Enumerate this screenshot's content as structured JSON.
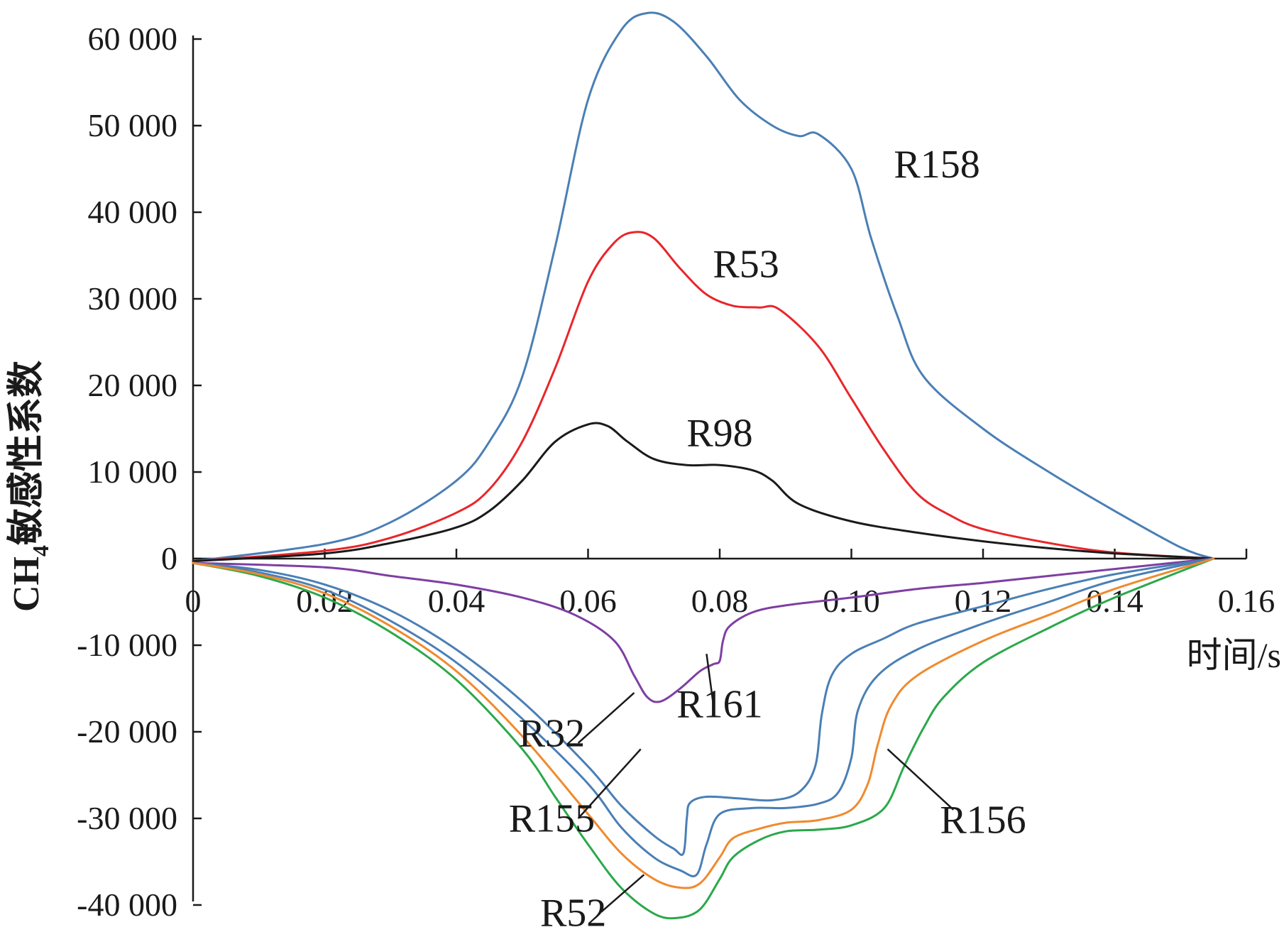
{
  "chart_data": {
    "type": "line",
    "title": "",
    "xlabel": "时间/s",
    "ylabel_main": "CH",
    "ylabel_sub": "4",
    "ylabel_rest": "敏感性系数",
    "xlim": [
      0,
      0.16
    ],
    "ylim": [
      -40000,
      60000
    ],
    "xticks": [
      {
        "v": 0,
        "label": "0"
      },
      {
        "v": 0.02,
        "label": "0.02"
      },
      {
        "v": 0.04,
        "label": "0.04"
      },
      {
        "v": 0.06,
        "label": "0.06"
      },
      {
        "v": 0.08,
        "label": "0.08"
      },
      {
        "v": 0.1,
        "label": "0.10"
      },
      {
        "v": 0.12,
        "label": "0.12"
      },
      {
        "v": 0.14,
        "label": "0.14"
      },
      {
        "v": 0.16,
        "label": "0.16"
      }
    ],
    "yticks": [
      {
        "v": 60000,
        "label": "60 000"
      },
      {
        "v": 50000,
        "label": "50 000"
      },
      {
        "v": 40000,
        "label": "40 000"
      },
      {
        "v": 30000,
        "label": "30 000"
      },
      {
        "v": 20000,
        "label": "20 000"
      },
      {
        "v": 10000,
        "label": "10 000"
      },
      {
        "v": 0,
        "label": "0"
      },
      {
        "v": -10000,
        "label": "-10 000"
      },
      {
        "v": -20000,
        "label": "-20 000"
      },
      {
        "v": -30000,
        "label": "-30 000"
      },
      {
        "v": -40000,
        "label": "-40 000"
      }
    ],
    "series": [
      {
        "name": "R158",
        "color": "#4a7fb5",
        "label_at": [
          0.113,
          44000
        ],
        "points": [
          [
            0,
            -300
          ],
          [
            0.02,
            1700
          ],
          [
            0.03,
            4200
          ],
          [
            0.04,
            9000
          ],
          [
            0.045,
            13500
          ],
          [
            0.05,
            21000
          ],
          [
            0.055,
            36000
          ],
          [
            0.06,
            53000
          ],
          [
            0.065,
            61000
          ],
          [
            0.069,
            63000
          ],
          [
            0.073,
            62000
          ],
          [
            0.078,
            58000
          ],
          [
            0.083,
            53000
          ],
          [
            0.088,
            50000
          ],
          [
            0.092,
            48800
          ],
          [
            0.095,
            49000
          ],
          [
            0.1,
            45000
          ],
          [
            0.103,
            37000
          ],
          [
            0.107,
            28000
          ],
          [
            0.111,
            21000
          ],
          [
            0.12,
            15000
          ],
          [
            0.13,
            10000
          ],
          [
            0.14,
            5500
          ],
          [
            0.15,
            1300
          ],
          [
            0.155,
            0
          ]
        ]
      },
      {
        "name": "R53",
        "color": "#e8262b",
        "label_at": [
          0.084,
          32500
        ],
        "points": [
          [
            0,
            -300
          ],
          [
            0.02,
            900
          ],
          [
            0.03,
            2400
          ],
          [
            0.04,
            5300
          ],
          [
            0.045,
            8000
          ],
          [
            0.05,
            13500
          ],
          [
            0.055,
            22000
          ],
          [
            0.06,
            32000
          ],
          [
            0.064,
            36500
          ],
          [
            0.067,
            37700
          ],
          [
            0.07,
            37000
          ],
          [
            0.074,
            33500
          ],
          [
            0.078,
            30500
          ],
          [
            0.082,
            29200
          ],
          [
            0.086,
            29000
          ],
          [
            0.089,
            28800
          ],
          [
            0.095,
            24500
          ],
          [
            0.1,
            18500
          ],
          [
            0.105,
            12500
          ],
          [
            0.11,
            7500
          ],
          [
            0.115,
            5000
          ],
          [
            0.12,
            3400
          ],
          [
            0.13,
            1800
          ],
          [
            0.14,
            700
          ],
          [
            0.155,
            0
          ]
        ]
      },
      {
        "name": "R98",
        "color": "#1a1a1a",
        "label_at": [
          0.08,
          13000
        ],
        "points": [
          [
            0,
            -300
          ],
          [
            0.02,
            600
          ],
          [
            0.03,
            1800
          ],
          [
            0.04,
            3600
          ],
          [
            0.045,
            5500
          ],
          [
            0.05,
            9000
          ],
          [
            0.055,
            13500
          ],
          [
            0.06,
            15500
          ],
          [
            0.063,
            15300
          ],
          [
            0.066,
            13500
          ],
          [
            0.07,
            11500
          ],
          [
            0.075,
            10800
          ],
          [
            0.08,
            10800
          ],
          [
            0.085,
            10200
          ],
          [
            0.088,
            9000
          ],
          [
            0.092,
            6300
          ],
          [
            0.1,
            4300
          ],
          [
            0.11,
            3000
          ],
          [
            0.12,
            2000
          ],
          [
            0.13,
            1200
          ],
          [
            0.14,
            600
          ],
          [
            0.155,
            0
          ]
        ]
      },
      {
        "name": "R161",
        "color": "#7e3fa3",
        "label_at": [
          0.08,
          -18300
        ],
        "leader": [
          [
            0.078,
            -11000
          ],
          [
            0.079,
            -16700
          ]
        ],
        "points": [
          [
            0,
            -500
          ],
          [
            0.02,
            -1000
          ],
          [
            0.03,
            -2000
          ],
          [
            0.04,
            -3000
          ],
          [
            0.05,
            -4500
          ],
          [
            0.058,
            -6500
          ],
          [
            0.064,
            -9500
          ],
          [
            0.067,
            -13500
          ],
          [
            0.069,
            -16000
          ],
          [
            0.071,
            -16500
          ],
          [
            0.074,
            -15000
          ],
          [
            0.077,
            -13000
          ],
          [
            0.079,
            -12200
          ],
          [
            0.08,
            -11800
          ],
          [
            0.0805,
            -9500
          ],
          [
            0.0815,
            -7800
          ],
          [
            0.085,
            -6200
          ],
          [
            0.09,
            -5400
          ],
          [
            0.1,
            -4500
          ],
          [
            0.11,
            -3500
          ],
          [
            0.12,
            -2800
          ],
          [
            0.13,
            -2000
          ],
          [
            0.14,
            -1200
          ],
          [
            0.155,
            0
          ]
        ]
      },
      {
        "name": "R32",
        "color": "#4a7fb5",
        "label_at": [
          0.0545,
          -21700
        ],
        "leader": [
          [
            0.0585,
            -21300
          ],
          [
            0.067,
            -15500
          ]
        ],
        "points": [
          [
            0,
            -500
          ],
          [
            0.01,
            -1300
          ],
          [
            0.02,
            -3000
          ],
          [
            0.03,
            -6000
          ],
          [
            0.04,
            -10500
          ],
          [
            0.05,
            -16500
          ],
          [
            0.06,
            -24000
          ],
          [
            0.065,
            -28500
          ],
          [
            0.07,
            -32000
          ],
          [
            0.073,
            -33500
          ],
          [
            0.0745,
            -34000
          ],
          [
            0.075,
            -30000
          ],
          [
            0.0755,
            -28200
          ],
          [
            0.078,
            -27500
          ],
          [
            0.083,
            -27700
          ],
          [
            0.088,
            -27900
          ],
          [
            0.092,
            -27000
          ],
          [
            0.0945,
            -24000
          ],
          [
            0.0955,
            -18000
          ],
          [
            0.097,
            -13500
          ],
          [
            0.1,
            -11000
          ],
          [
            0.105,
            -9200
          ],
          [
            0.11,
            -7500
          ],
          [
            0.12,
            -5500
          ],
          [
            0.13,
            -3500
          ],
          [
            0.14,
            -1800
          ],
          [
            0.155,
            0
          ]
        ]
      },
      {
        "name": "R155",
        "color": "#4a7fb5",
        "label_at": [
          0.0545,
          -31500
        ],
        "leader": [
          [
            0.0585,
            -30000
          ],
          [
            0.068,
            -22000
          ]
        ],
        "points": [
          [
            0,
            -500
          ],
          [
            0.01,
            -1600
          ],
          [
            0.02,
            -3600
          ],
          [
            0.03,
            -7200
          ],
          [
            0.04,
            -12000
          ],
          [
            0.05,
            -18500
          ],
          [
            0.06,
            -26000
          ],
          [
            0.065,
            -31000
          ],
          [
            0.07,
            -34500
          ],
          [
            0.074,
            -36000
          ],
          [
            0.0765,
            -36500
          ],
          [
            0.078,
            -33000
          ],
          [
            0.08,
            -29500
          ],
          [
            0.085,
            -28800
          ],
          [
            0.09,
            -28800
          ],
          [
            0.095,
            -28300
          ],
          [
            0.098,
            -27000
          ],
          [
            0.1,
            -23000
          ],
          [
            0.101,
            -17500
          ],
          [
            0.104,
            -13500
          ],
          [
            0.11,
            -10500
          ],
          [
            0.12,
            -7500
          ],
          [
            0.13,
            -5000
          ],
          [
            0.14,
            -2500
          ],
          [
            0.155,
            0
          ]
        ]
      },
      {
        "name": "R52",
        "color": "#2ba84a",
        "label_at": [
          0.05775,
          -42400
        ],
        "leader": [
          [
            0.062,
            -40800
          ],
          [
            0.0685,
            -36500
          ]
        ],
        "points": [
          [
            0,
            -500
          ],
          [
            0.01,
            -2000
          ],
          [
            0.02,
            -4500
          ],
          [
            0.03,
            -8500
          ],
          [
            0.04,
            -14000
          ],
          [
            0.05,
            -22000
          ],
          [
            0.055,
            -27500
          ],
          [
            0.06,
            -33000
          ],
          [
            0.065,
            -38000
          ],
          [
            0.07,
            -41000
          ],
          [
            0.0735,
            -41500
          ],
          [
            0.077,
            -40500
          ],
          [
            0.08,
            -37000
          ],
          [
            0.082,
            -34500
          ],
          [
            0.086,
            -32500
          ],
          [
            0.09,
            -31500
          ],
          [
            0.095,
            -31300
          ],
          [
            0.1,
            -30800
          ],
          [
            0.105,
            -28800
          ],
          [
            0.108,
            -24000
          ],
          [
            0.111,
            -19500
          ],
          [
            0.114,
            -16000
          ],
          [
            0.12,
            -12000
          ],
          [
            0.13,
            -8000
          ],
          [
            0.14,
            -4500
          ],
          [
            0.155,
            0
          ]
        ]
      },
      {
        "name": "R156",
        "color": "#f08a2e",
        "label_at": [
          0.12,
          -31700
        ],
        "leader": [
          [
            0.1055,
            -22000
          ],
          [
            0.1155,
            -29000
          ]
        ],
        "points": [
          [
            0,
            -500
          ],
          [
            0.01,
            -1800
          ],
          [
            0.02,
            -4000
          ],
          [
            0.03,
            -7800
          ],
          [
            0.04,
            -13000
          ],
          [
            0.05,
            -20500
          ],
          [
            0.06,
            -29500
          ],
          [
            0.065,
            -34000
          ],
          [
            0.07,
            -37000
          ],
          [
            0.074,
            -38000
          ],
          [
            0.077,
            -37500
          ],
          [
            0.08,
            -34500
          ],
          [
            0.082,
            -32300
          ],
          [
            0.086,
            -31200
          ],
          [
            0.09,
            -30500
          ],
          [
            0.095,
            -30200
          ],
          [
            0.1,
            -29000
          ],
          [
            0.1025,
            -26000
          ],
          [
            0.104,
            -21500
          ],
          [
            0.106,
            -17000
          ],
          [
            0.11,
            -13500
          ],
          [
            0.12,
            -9500
          ],
          [
            0.13,
            -6500
          ],
          [
            0.14,
            -3500
          ],
          [
            0.155,
            0
          ]
        ]
      }
    ]
  }
}
